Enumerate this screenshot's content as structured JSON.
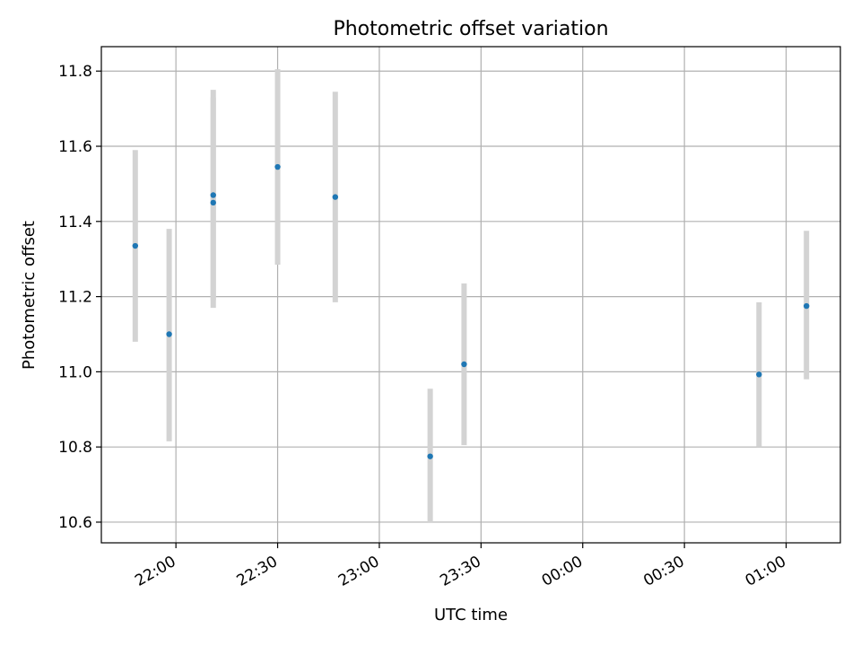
{
  "chart_data": {
    "type": "scatter",
    "title": "Photometric offset variation",
    "xlabel": "UTC time",
    "ylabel": "Photometric offset",
    "xlim": [
      "21:38",
      "01:16"
    ],
    "ylim": [
      10.545,
      11.865
    ],
    "x_ticks": [
      "22:00",
      "22:30",
      "23:00",
      "23:30",
      "00:00",
      "00:30",
      "01:00"
    ],
    "y_ticks": [
      "10.6",
      "10.8",
      "11.0",
      "11.2",
      "11.4",
      "11.6",
      "11.8"
    ],
    "grid": true,
    "series": [
      {
        "points": [
          {
            "x": "21:48",
            "y": 11.335,
            "low": 11.08,
            "high": 11.59
          },
          {
            "x": "21:58",
            "y": 11.1,
            "low": 10.815,
            "high": 11.38
          },
          {
            "x": "22:11",
            "y": 11.45,
            "low": 11.17,
            "high": 11.73
          },
          {
            "x": "22:11",
            "y": 11.47,
            "low": 11.19,
            "high": 11.75
          },
          {
            "x": "22:30",
            "y": 11.545,
            "low": 11.285,
            "high": 11.805
          },
          {
            "x": "22:47",
            "y": 11.465,
            "low": 11.185,
            "high": 11.745
          },
          {
            "x": "23:15",
            "y": 10.775,
            "low": 10.6,
            "high": 10.955
          },
          {
            "x": "23:25",
            "y": 11.02,
            "low": 10.805,
            "high": 11.235
          },
          {
            "x": "00:52",
            "y": 10.993,
            "low": 10.8,
            "high": 11.185
          },
          {
            "x": "01:06",
            "y": 11.175,
            "low": 10.98,
            "high": 11.375
          }
        ]
      }
    ],
    "colors": {
      "point": "#1f77b4",
      "errorbar": "#d3d3d3",
      "grid": "#b0b0b0",
      "axis": "#000000"
    }
  }
}
